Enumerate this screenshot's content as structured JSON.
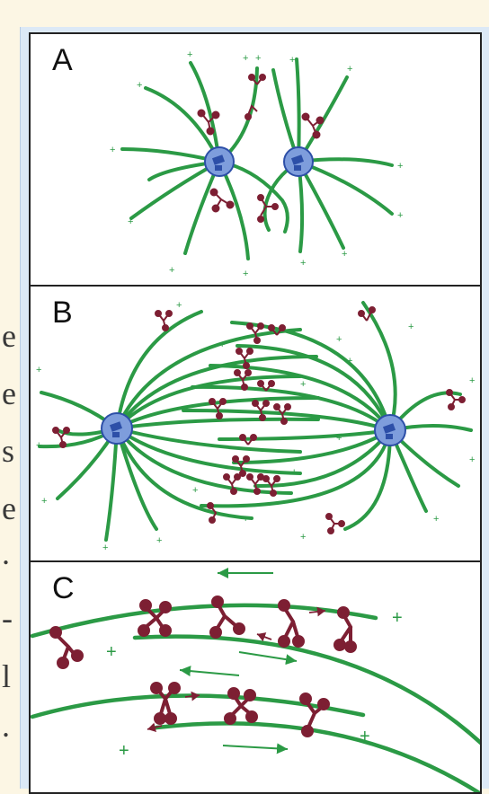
{
  "side_text": [
    "e",
    "e",
    "s",
    "e",
    ".",
    "-",
    "l",
    "."
  ],
  "panels": [
    {
      "label": "A"
    },
    {
      "label": "B"
    },
    {
      "label": "C"
    }
  ],
  "colors": {
    "microtubule": "#2b9a45",
    "motor": "#7d1f33",
    "centrosome_fill": "#7e9ddc",
    "centrosome_core": "#2d4fa8",
    "frame": "#dce9f6",
    "page": "#fcf6e4"
  }
}
